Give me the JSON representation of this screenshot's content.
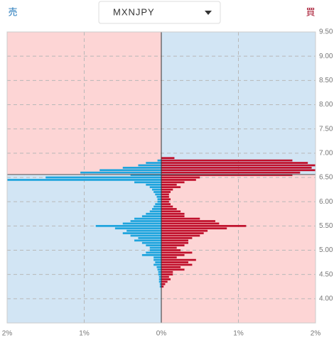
{
  "chart_data": {
    "type": "orderbook",
    "title": "MXNJPY",
    "current_price": 6.56,
    "prices": [
      6.9,
      6.85,
      6.8,
      6.75,
      6.7,
      6.65,
      6.6,
      6.55,
      6.5,
      6.45,
      6.4,
      6.35,
      6.3,
      6.25,
      6.2,
      6.15,
      6.1,
      6.05,
      6.0,
      5.95,
      5.9,
      5.85,
      5.8,
      5.75,
      5.7,
      5.65,
      5.6,
      5.55,
      5.5,
      5.45,
      5.4,
      5.35,
      5.3,
      5.25,
      5.2,
      5.15,
      5.1,
      5.05,
      5.0,
      4.95,
      4.9,
      4.85,
      4.8,
      4.75,
      4.7,
      4.65,
      4.6,
      4.55,
      4.5,
      4.45,
      4.4,
      4.35,
      4.3,
      4.25
    ],
    "series": [
      {
        "name": "売",
        "side": "left",
        "color": "#1ea4dd",
        "values": [
          0,
          0.05,
          0.2,
          0.3,
          0.5,
          0.8,
          1.05,
          0.4,
          1.5,
          2.0,
          0.35,
          0.2,
          0.15,
          0.12,
          0.1,
          0.08,
          0.06,
          0.05,
          0.05,
          0.08,
          0.1,
          0.12,
          0.15,
          0.2,
          0.25,
          0.35,
          0.4,
          0.5,
          0.85,
          0.6,
          0.45,
          0.5,
          0.4,
          0.3,
          0.35,
          0.25,
          0.2,
          0.15,
          0.15,
          0.2,
          0.25,
          0.1,
          0.1,
          0.08,
          0.1,
          0.06,
          0.05,
          0.04,
          0.04,
          0.03,
          0.03,
          0.03,
          0.02,
          0.02
        ]
      },
      {
        "name": "買",
        "side": "right",
        "color": "#c0102c",
        "values": [
          0.17,
          1.7,
          1.9,
          2.0,
          1.95,
          2.0,
          1.8,
          1.7,
          0.5,
          0.45,
          0.3,
          0.2,
          0.25,
          0.15,
          0.12,
          0.1,
          0.1,
          0.12,
          0.1,
          0.12,
          0.15,
          0.2,
          0.25,
          0.3,
          0.3,
          0.5,
          0.7,
          0.75,
          1.1,
          0.85,
          0.6,
          0.55,
          0.5,
          0.4,
          0.35,
          0.35,
          0.3,
          0.2,
          0.25,
          0.4,
          0.3,
          0.2,
          0.45,
          0.35,
          0.4,
          0.25,
          0.3,
          0.15,
          0.15,
          0.1,
          0.12,
          0.08,
          0.05,
          0.03
        ]
      }
    ],
    "xlim": [
      -2,
      2
    ],
    "xticks": [
      {
        "value": -2,
        "label": "2%"
      },
      {
        "value": -1,
        "label": "1%"
      },
      {
        "value": 0,
        "label": "0%"
      },
      {
        "value": 1,
        "label": "1%"
      },
      {
        "value": 2,
        "label": "2%"
      }
    ],
    "ylim": [
      3.5,
      9.5
    ],
    "yticks": [
      {
        "value": 9.5,
        "label": "9.50"
      },
      {
        "value": 9.0,
        "label": "9.00"
      },
      {
        "value": 8.5,
        "label": "8.50"
      },
      {
        "value": 8.0,
        "label": "8.00"
      },
      {
        "value": 7.5,
        "label": "7.50"
      },
      {
        "value": 7.0,
        "label": "7.00"
      },
      {
        "value": 6.5,
        "label": "6.50"
      },
      {
        "value": 6.0,
        "label": "6.00"
      },
      {
        "value": 5.5,
        "label": "5.50"
      },
      {
        "value": 5.0,
        "label": "5.00"
      },
      {
        "value": 4.5,
        "label": "4.50"
      },
      {
        "value": 4.0,
        "label": "4.00"
      }
    ],
    "grid": true
  }
}
